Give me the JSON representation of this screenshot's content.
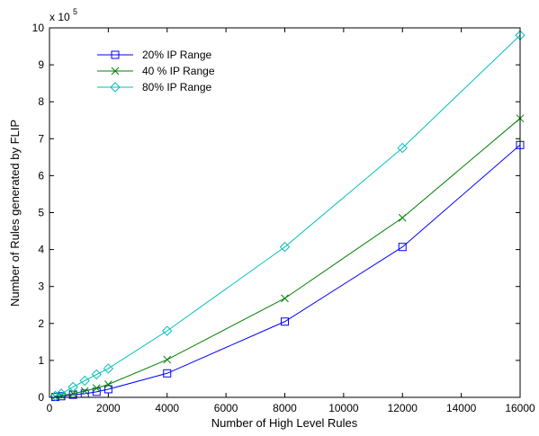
{
  "chart_data": {
    "type": "line",
    "title": "",
    "xlabel": "Number of High Level Rules",
    "ylabel": "Number of Rules generated by FLIP",
    "y_multiplier": "x 10",
    "y_exponent": "5",
    "xlim": [
      0,
      16000
    ],
    "ylim": [
      0,
      10
    ],
    "xticks": [
      "0",
      "2000",
      "4000",
      "6000",
      "8000",
      "10000",
      "12000",
      "14000",
      "16000"
    ],
    "yticks": [
      "0",
      "1",
      "2",
      "3",
      "4",
      "5",
      "6",
      "7",
      "8",
      "9",
      "10"
    ],
    "grid": false,
    "legend_position": "top-left",
    "series": [
      {
        "name": "20% IP Range",
        "color": "#0000ff",
        "marker": "square",
        "x": [
          200,
          400,
          800,
          1200,
          1600,
          2000,
          4000,
          8000,
          12000,
          16000
        ],
        "y": [
          0.01,
          0.03,
          0.07,
          0.1,
          0.15,
          0.22,
          0.65,
          2.05,
          4.07,
          6.83
        ]
      },
      {
        "name": "40 % IP Range",
        "color": "#008000",
        "marker": "x",
        "x": [
          200,
          400,
          800,
          1200,
          1600,
          2000,
          4000,
          8000,
          12000,
          16000
        ],
        "y": [
          0.02,
          0.05,
          0.1,
          0.17,
          0.25,
          0.35,
          1.02,
          2.68,
          4.86,
          7.55
        ]
      },
      {
        "name": "80% IP Range",
        "color": "#00bfbf",
        "marker": "diamond",
        "x": [
          200,
          400,
          800,
          1200,
          1600,
          2000,
          4000,
          8000,
          12000,
          16000
        ],
        "y": [
          0.04,
          0.1,
          0.28,
          0.45,
          0.62,
          0.78,
          1.8,
          4.07,
          6.75,
          9.8
        ]
      }
    ]
  }
}
